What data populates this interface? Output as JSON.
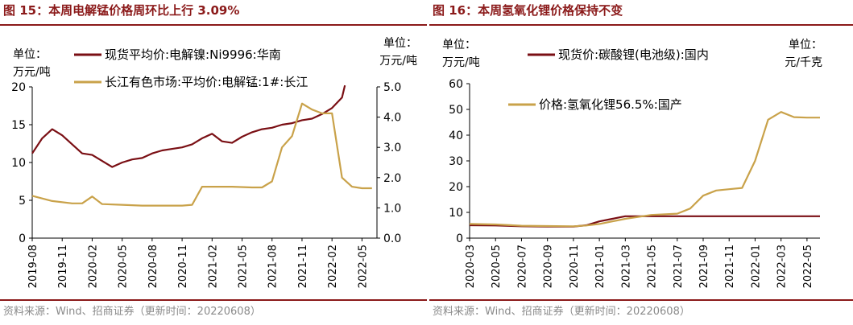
{
  "source": "资料来源：Wind、招商证券（更新时间：20220608）",
  "colors": {
    "title": "#8B1A1A",
    "series_dark": "#7A0F14",
    "series_gold": "#C9A24A",
    "axis": "#000000",
    "source": "#8a8a8a"
  },
  "chart_data": [
    {
      "type": "line",
      "title": "图 15：本周电解锰价格周环比上行 3.09%",
      "y_left_unit": "单位：万元/吨",
      "y_right_unit": "单位：万元/吨",
      "ylim_left": [
        0,
        20
      ],
      "ylim_right": [
        0,
        5
      ],
      "yticks_left": [
        "0",
        "5",
        "10",
        "15",
        "20"
      ],
      "yticks_right": [
        "0.0",
        "1.0",
        "2.0",
        "3.0",
        "4.0",
        "5.0"
      ],
      "xticks": [
        "2019-08",
        "2019-11",
        "2020-02",
        "2020-05",
        "2020-08",
        "2020-11",
        "2021-02",
        "2021-05",
        "2021-08",
        "2021-11",
        "2022-02",
        "2022-05"
      ],
      "grid": false,
      "legend_position": "top-left",
      "series": [
        {
          "name": "现货平均价:电解镍:Ni9996:华南",
          "axis": "right",
          "color": "#7A0F14",
          "x": [
            "2019-08",
            "2019-09",
            "2019-10",
            "2019-11",
            "2019-12",
            "2020-01",
            "2020-02",
            "2020-03",
            "2020-04",
            "2020-05",
            "2020-06",
            "2020-07",
            "2020-08",
            "2020-09",
            "2020-10",
            "2020-11",
            "2020-12",
            "2021-01",
            "2021-02",
            "2021-03",
            "2021-04",
            "2021-05",
            "2021-06",
            "2021-07",
            "2021-08",
            "2021-09",
            "2021-10",
            "2021-11",
            "2021-12",
            "2022-01",
            "2022-02",
            "2022-03",
            "2022-03-10"
          ],
          "values": [
            2.8,
            3.3,
            3.6,
            3.4,
            3.1,
            2.8,
            2.75,
            2.55,
            2.35,
            2.5,
            2.6,
            2.65,
            2.8,
            2.9,
            2.95,
            3.0,
            3.1,
            3.3,
            3.45,
            3.2,
            3.15,
            3.35,
            3.5,
            3.6,
            3.65,
            3.75,
            3.8,
            3.9,
            3.95,
            4.1,
            4.3,
            4.65,
            5.05
          ]
        },
        {
          "name": "长江有色市场:平均价:电解锰:1#:长江",
          "axis": "left",
          "color": "#C9A24A",
          "x": [
            "2019-08",
            "2019-10",
            "2019-12",
            "2020-01",
            "2020-02",
            "2020-03",
            "2020-05",
            "2020-07",
            "2020-09",
            "2020-11",
            "2020-12",
            "2021-01",
            "2021-04",
            "2021-06",
            "2021-07",
            "2021-08",
            "2021-09",
            "2021-10",
            "2021-11",
            "2021-12",
            "2022-01",
            "2022-02",
            "2022-03",
            "2022-04",
            "2022-05",
            "2022-06"
          ],
          "values": [
            5.6,
            4.9,
            4.6,
            4.6,
            5.5,
            4.5,
            4.4,
            4.3,
            4.3,
            4.3,
            4.4,
            6.8,
            6.8,
            6.7,
            6.7,
            7.5,
            12.0,
            13.5,
            17.8,
            17.0,
            16.5,
            16.5,
            8.0,
            6.8,
            6.6,
            6.6
          ]
        }
      ]
    },
    {
      "type": "line",
      "title": "图 16：本周氢氧化锂价格保持不变",
      "y_left_unit": "单位：万元/吨",
      "y_right_unit": "单位：元/千克",
      "ylim_left": [
        0,
        60
      ],
      "yticks_left": [
        "0",
        "10",
        "20",
        "30",
        "40",
        "50",
        "60"
      ],
      "xticks": [
        "2020-03",
        "2020-05",
        "2020-07",
        "2020-09",
        "2020-11",
        "2021-01",
        "2021-03",
        "2021-05",
        "2021-07",
        "2021-09",
        "2021-11",
        "2022-01",
        "2022-03",
        "2022-05"
      ],
      "grid": false,
      "legend_position": "top-left",
      "series": [
        {
          "name": "现货价:碳酸锂(电池级):国内",
          "axis": "right",
          "color": "#7A0F14",
          "x": [
            "2020-03",
            "2020-05",
            "2020-07",
            "2020-09",
            "2020-11",
            "2020-12",
            "2021-01",
            "2021-02",
            "2021-03",
            "2021-05",
            "2021-07",
            "2021-09",
            "2021-11",
            "2022-01",
            "2022-03",
            "2022-05",
            "2022-06"
          ],
          "values": [
            5.0,
            4.9,
            4.6,
            4.5,
            4.5,
            5.0,
            6.5,
            7.5,
            8.5,
            8.5,
            8.5,
            8.5,
            8.5,
            8.5,
            8.5,
            8.5,
            8.5
          ]
        },
        {
          "name": "价格:氢氧化锂56.5%:国产",
          "axis": "left",
          "color": "#C9A24A",
          "x": [
            "2020-03",
            "2020-05",
            "2020-07",
            "2020-09",
            "2020-11",
            "2020-12",
            "2021-01",
            "2021-03",
            "2021-05",
            "2021-07",
            "2021-08",
            "2021-09",
            "2021-10",
            "2021-11",
            "2021-12",
            "2022-01",
            "2022-02",
            "2022-03",
            "2022-04",
            "2022-05",
            "2022-06"
          ],
          "values": [
            5.5,
            5.3,
            4.8,
            4.7,
            4.6,
            4.9,
            5.5,
            7.5,
            9.0,
            9.5,
            11.5,
            16.5,
            18.5,
            19.0,
            19.5,
            30.0,
            46.0,
            49.0,
            47.0,
            46.8,
            46.8
          ]
        }
      ]
    }
  ]
}
